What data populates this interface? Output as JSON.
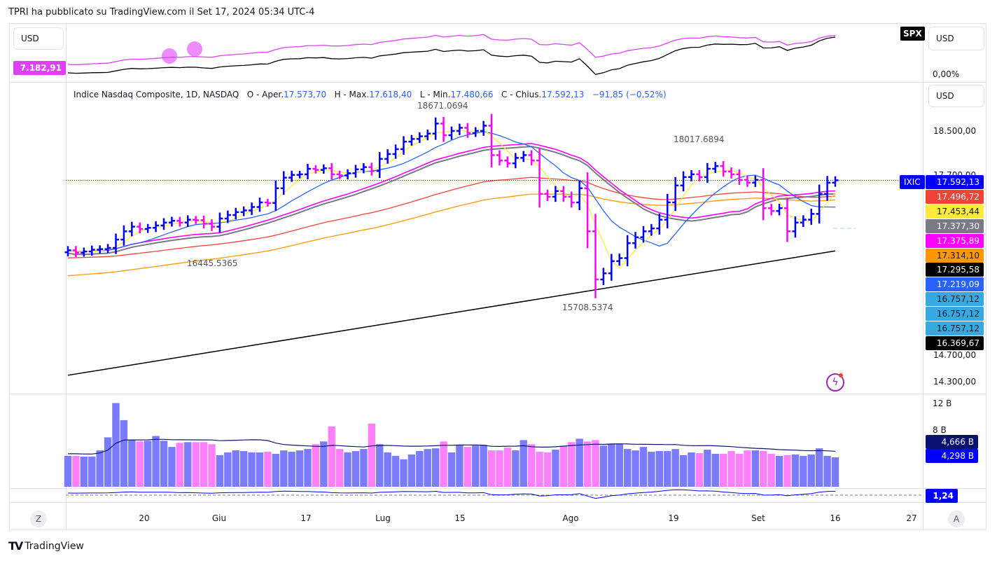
{
  "header": {
    "published": "TPRI ha pubblicato su TradingView.com il Set 17, 2024 05:34 UTC-4"
  },
  "compare_pane": {
    "currency_left": "USD",
    "currency_right": "USD",
    "symbol_badge": "SPX",
    "value_label": "7.182,91",
    "percent_label": "0,00%",
    "colors": {
      "spx": "#000000",
      "ixic": "#e040fb"
    }
  },
  "legend": {
    "title": "Indice Nasdaq Composite, 1D, NASDAQ",
    "open_label": "O - Aper.",
    "open": "17.573,70",
    "high_label": "H - Max.",
    "high": "17.618,40",
    "low_label": "L - Min.",
    "low": "17.480,66",
    "close_label": "C - Chius.",
    "close": "17.592,13",
    "change": "−91,85 (−0,52%)"
  },
  "price_axis": {
    "currency": "USD",
    "ticks": [
      "18.500,00",
      "17.700,00",
      "14.700,00",
      "14.300,00"
    ],
    "symbol_tag": "IXIC",
    "labels": [
      {
        "text": "17.592,13",
        "bg": "#0000ff",
        "fg": "#ffffff"
      },
      {
        "text": "17.496,72",
        "bg": "#f44336",
        "fg": "#ffffff"
      },
      {
        "text": "17.453,44",
        "bg": "#ffeb3b",
        "fg": "#131722"
      },
      {
        "text": "17.377,30",
        "bg": "#787b86",
        "fg": "#ffffff"
      },
      {
        "text": "17.375,89",
        "bg": "#ff00ff",
        "fg": "#ffffff"
      },
      {
        "text": "17.314,10",
        "bg": "#ff9800",
        "fg": "#131722"
      },
      {
        "text": "17.295,58",
        "bg": "#000000",
        "fg": "#ffffff"
      },
      {
        "text": "17.219,09",
        "bg": "#2962ff",
        "fg": "#ffffff"
      },
      {
        "text": "16.757,12",
        "bg": "#36a9e1",
        "fg": "#131722"
      },
      {
        "text": "16.757,12",
        "bg": "#36a9e1",
        "fg": "#131722"
      },
      {
        "text": "16.757,12",
        "bg": "#36a9e1",
        "fg": "#131722"
      },
      {
        "text": "16.369,67",
        "bg": "#000000",
        "fg": "#ffffff"
      }
    ]
  },
  "annotations": {
    "high1": "18671.0694",
    "high2": "18017.6894",
    "low1": "16445.5365",
    "low2": "15708.5374"
  },
  "volume_axis": {
    "ticks": [
      "12 B",
      "8 B"
    ],
    "ma_label": "4,666 B",
    "vol_label": "4,298 B"
  },
  "indicator_axis": {
    "value": "1,24"
  },
  "time_axis": {
    "labels": [
      "20",
      "Giu",
      "17",
      "Lug",
      "15",
      "Ago",
      "19",
      "Set",
      "16",
      "27"
    ],
    "left_button": "Z",
    "right_button": "A"
  },
  "footer": {
    "brand": "TradingView"
  },
  "chart_data": {
    "type": "ohlc-bar",
    "scale": "log",
    "closes": [
      16380,
      16340,
      16360,
      16390,
      16400,
      16420,
      16560,
      16700,
      16780,
      16740,
      16760,
      16800,
      16850,
      16880,
      16850,
      16900,
      16890,
      16830,
      16780,
      16920,
      16980,
      17030,
      17060,
      17120,
      17200,
      17190,
      17450,
      17640,
      17690,
      17700,
      17800,
      17780,
      17810,
      17700,
      17680,
      17720,
      17790,
      17830,
      17760,
      17980,
      18070,
      18160,
      18300,
      18350,
      18400,
      18450,
      18640,
      18420,
      18500,
      18560,
      18460,
      18500,
      18600,
      18050,
      17950,
      17900,
      18000,
      18050,
      17950,
      17350,
      17300,
      17400,
      17300,
      17200,
      17450,
      16700,
      15900,
      16000,
      16200,
      16250,
      16500,
      16600,
      16700,
      16750,
      16900,
      17200,
      17500,
      17650,
      17700,
      17650,
      17800,
      17850,
      17750,
      17700,
      17600,
      17550,
      17600,
      17100,
      17050,
      17100,
      16700,
      16850,
      16900,
      17000,
      17350,
      17550,
      17592.13
    ],
    "volume_b": [
      4.5,
      4.5,
      4.4,
      4.4,
      5.3,
      7.2,
      12.2,
      9.7,
      6.8,
      6.6,
      6.7,
      7.4,
      6.7,
      5.8,
      6.4,
      6.5,
      6.5,
      6.5,
      6.2,
      4.6,
      5.0,
      5.3,
      5.2,
      5.0,
      5.0,
      5.1,
      4.8,
      5.3,
      5.1,
      5.3,
      5.5,
      6.2,
      6.6,
      8.8,
      5.5,
      5.0,
      5.2,
      5.5,
      9.2,
      6.2,
      5.0,
      4.5,
      4.0,
      4.7,
      5.2,
      5.5,
      5.6,
      6.6,
      5.0,
      6.1,
      5.8,
      6.0,
      6.1,
      5.3,
      5.3,
      5.7,
      5.3,
      6.8,
      6.2,
      5.1,
      5.0,
      5.4,
      5.9,
      6.5,
      7.0,
      6.6,
      6.8,
      6.0,
      6.2,
      6.3,
      5.5,
      5.3,
      5.8,
      5.1,
      5.2,
      5.2,
      5.5,
      4.6,
      5.0,
      4.9,
      5.4,
      4.8,
      4.8,
      5.2,
      4.8,
      5.3,
      5.3,
      5.2,
      4.8,
      4.5,
      4.6,
      4.7,
      4.5,
      4.7,
      5.6,
      4.5,
      4.298
    ],
    "ma200_endpoints": [
      14420,
      16369.67
    ],
    "colors": {
      "up": "#0000ff",
      "down": "#ff00ff",
      "sma_fast": "#ffeb3b",
      "sma_mid": "#2962ff",
      "sma_slow": "#ff00ff",
      "sma_slow2": "#787b86",
      "long1": "#f44336",
      "long2": "#ff9800",
      "ma200": "#000000",
      "vol_up": "#7b7bff",
      "vol_down": "#ff80ff",
      "vol_ma": "#0d1a6e"
    }
  }
}
